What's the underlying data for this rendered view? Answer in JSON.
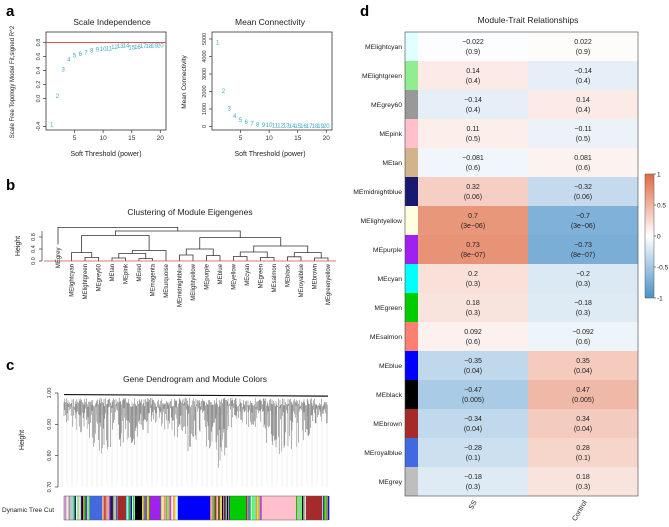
{
  "panels": {
    "a": {
      "letter": "a",
      "scale_free": {
        "type": "scatter",
        "title": "Scale Independence",
        "xlabel": "Soft Threshold (power)",
        "ylabel": "Scale Free Topology Model Fit,signed R^2",
        "xlim": [
          0,
          21
        ],
        "ylim": [
          -0.45,
          0.95
        ],
        "xticks": [
          5,
          10,
          15,
          20
        ],
        "yticks": [
          -0.4,
          0.0,
          0.2,
          0.4,
          0.6,
          0.8
        ],
        "ytick_labels": [
          "-0.4",
          "0.0",
          "0.2",
          "0.4",
          "0.6",
          "0.8"
        ],
        "hline": 0.8,
        "points": [
          {
            "x": 1,
            "y": -0.37
          },
          {
            "x": 2,
            "y": 0.04
          },
          {
            "x": 3,
            "y": 0.42
          },
          {
            "x": 4,
            "y": 0.56
          },
          {
            "x": 5,
            "y": 0.62
          },
          {
            "x": 6,
            "y": 0.64
          },
          {
            "x": 7,
            "y": 0.66
          },
          {
            "x": 8,
            "y": 0.69
          },
          {
            "x": 9,
            "y": 0.7
          },
          {
            "x": 10,
            "y": 0.71
          },
          {
            "x": 11,
            "y": 0.72
          },
          {
            "x": 12,
            "y": 0.74
          },
          {
            "x": 13,
            "y": 0.75
          },
          {
            "x": 14,
            "y": 0.76
          },
          {
            "x": 15,
            "y": 0.73
          },
          {
            "x": 16,
            "y": 0.74
          },
          {
            "x": 17,
            "y": 0.75
          },
          {
            "x": 18,
            "y": 0.75
          },
          {
            "x": 19,
            "y": 0.76
          },
          {
            "x": 20,
            "y": 0.76
          }
        ]
      },
      "mean_conn": {
        "type": "scatter",
        "title": "Mean Connectivity",
        "xlabel": "Soft Threshold (power)",
        "ylabel": "Mean Connectivity",
        "xlim": [
          0,
          21
        ],
        "ylim": [
          -200,
          5400
        ],
        "xticks": [
          5,
          10,
          15,
          20
        ],
        "yticks": [
          0,
          1000,
          2000,
          3000,
          4000,
          5000
        ],
        "ytick_labels": [
          "0",
          "1000",
          "2000",
          "3000",
          "4000",
          "5000"
        ],
        "points": [
          {
            "x": 1,
            "y": 4800
          },
          {
            "x": 2,
            "y": 2050
          },
          {
            "x": 3,
            "y": 1050
          },
          {
            "x": 4,
            "y": 600
          },
          {
            "x": 5,
            "y": 380
          },
          {
            "x": 6,
            "y": 260
          },
          {
            "x": 7,
            "y": 190
          },
          {
            "x": 8,
            "y": 140
          },
          {
            "x": 9,
            "y": 110
          },
          {
            "x": 10,
            "y": 90
          },
          {
            "x": 11,
            "y": 75
          },
          {
            "x": 12,
            "y": 65
          },
          {
            "x": 13,
            "y": 55
          },
          {
            "x": 14,
            "y": 48
          },
          {
            "x": 15,
            "y": 42
          },
          {
            "x": 16,
            "y": 38
          },
          {
            "x": 17,
            "y": 34
          },
          {
            "x": 18,
            "y": 31
          },
          {
            "x": 19,
            "y": 28
          },
          {
            "x": 20,
            "y": 26
          }
        ]
      }
    },
    "b": {
      "letter": "b",
      "title": "Clustering of Module Eigengenes",
      "ylabel": "Height",
      "yticks": [
        0.0,
        0.4,
        0.8
      ],
      "ytick_labels": [
        "0.0",
        "0.4",
        "0.8"
      ],
      "leaves": [
        "MEgrey",
        "MElightcyan",
        "MElightgreen",
        "MEgrey60",
        "MEtan",
        "MEpink",
        "MEred",
        "MEmagenta",
        "MEturquoise",
        "MEmidnightblue",
        "MElightyellow",
        "MEpurple",
        "MEblue",
        "MEyellow",
        "MEcyan",
        "MEgreen",
        "MEsalmon",
        "MEblack",
        "MEroyalblue",
        "MEbrown",
        "MEgreenyellow"
      ]
    },
    "c": {
      "letter": "c",
      "title": "Gene Dendrogram and Module Colors",
      "ylabel": "Height",
      "yticks": [
        0.7,
        0.8,
        0.9,
        1.0
      ],
      "ytick_labels": [
        "0.70",
        "0.80",
        "0.90",
        "1.00"
      ],
      "track_label": "Dynamic Tree Cut"
    },
    "d": {
      "letter": "d",
      "title": "Module-Trait Relationships",
      "traits": [
        "SS",
        "Control"
      ],
      "legend_ticks": [
        1,
        0.5,
        0,
        -0.5,
        -1
      ],
      "legend_labels": [
        "1",
        "0.5",
        "0",
        "-0.5",
        "-1"
      ],
      "colors": {
        "negative": "#4a90c8",
        "neutral": "#ffffff",
        "positive": "#e06a43"
      },
      "modules": [
        {
          "name": "MElightcyan",
          "color": "#e0ffff",
          "ss_r": "−0.022",
          "ss_p": "(0.9)",
          "ct_r": "0.022",
          "ct_p": "(0.9)",
          "value": -0.022
        },
        {
          "name": "MElightgreen",
          "color": "#90ee90",
          "ss_r": "0.14",
          "ss_p": "(0.4)",
          "ct_r": "−0.14",
          "ct_p": "(0.4)",
          "value": 0.14
        },
        {
          "name": "MEgrey60",
          "color": "#999999",
          "ss_r": "−0.14",
          "ss_p": "(0.4)",
          "ct_r": "0.14",
          "ct_p": "(0.4)",
          "value": -0.14
        },
        {
          "name": "MEpink",
          "color": "#ffc0cb",
          "ss_r": "0.11",
          "ss_p": "(0.5)",
          "ct_r": "−0.11",
          "ct_p": "(0.5)",
          "value": 0.11
        },
        {
          "name": "MEtan",
          "color": "#d2b48c",
          "ss_r": "−0.081",
          "ss_p": "(0.6)",
          "ct_r": "0.081",
          "ct_p": "(0.6)",
          "value": -0.081
        },
        {
          "name": "MEmidnightblue",
          "color": "#191970",
          "ss_r": "0.32",
          "ss_p": "(0.06)",
          "ct_r": "−0.32",
          "ct_p": "(0.06)",
          "value": 0.32
        },
        {
          "name": "MElightyellow",
          "color": "#ffffe0",
          "ss_r": "0.7",
          "ss_p": "(3e−06)",
          "ct_r": "−0.7",
          "ct_p": "(3e−06)",
          "value": 0.7
        },
        {
          "name": "MEpurple",
          "color": "#a020f0",
          "ss_r": "0.73",
          "ss_p": "(8e−07)",
          "ct_r": "−0.73",
          "ct_p": "(8e−07)",
          "value": 0.73
        },
        {
          "name": "MEcyan",
          "color": "#00ffff",
          "ss_r": "0.2",
          "ss_p": "(0.3)",
          "ct_r": "−0.2",
          "ct_p": "(0.3)",
          "value": 0.2
        },
        {
          "name": "MEgreen",
          "color": "#00cc00",
          "ss_r": "0.18",
          "ss_p": "(0.3)",
          "ct_r": "−0.18",
          "ct_p": "(0.3)",
          "value": 0.18
        },
        {
          "name": "MEsalmon",
          "color": "#fa8072",
          "ss_r": "0.092",
          "ss_p": "(0.6)",
          "ct_r": "−0.092",
          "ct_p": "(0.6)",
          "value": 0.092
        },
        {
          "name": "MEblue",
          "color": "#0000ff",
          "ss_r": "−0.35",
          "ss_p": "(0.04)",
          "ct_r": "0.35",
          "ct_p": "(0.04)",
          "value": -0.35
        },
        {
          "name": "MEblack",
          "color": "#000000",
          "ss_r": "−0.47",
          "ss_p": "(0.005)",
          "ct_r": "0.47",
          "ct_p": "(0.005)",
          "value": -0.47
        },
        {
          "name": "MEbrown",
          "color": "#a52a2a",
          "ss_r": "−0.34",
          "ss_p": "(0.04)",
          "ct_r": "0.34",
          "ct_p": "(0.04)",
          "value": -0.34
        },
        {
          "name": "MEroyalblue",
          "color": "#4169e1",
          "ss_r": "−0.28",
          "ss_p": "(0.1)",
          "ct_r": "0.28",
          "ct_p": "(0.1)",
          "value": -0.28
        },
        {
          "name": "MEgrey",
          "color": "#bebebe",
          "ss_r": "−0.18",
          "ss_p": "(0.3)",
          "ct_r": "0.18",
          "ct_p": "(0.3)",
          "value": -0.18
        }
      ]
    }
  }
}
